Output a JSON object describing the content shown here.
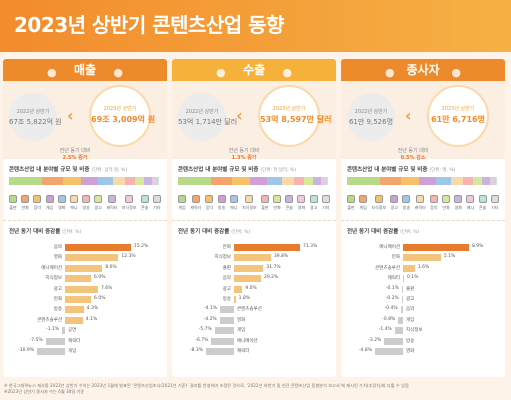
{
  "page": {
    "title": "2023년 상반기 콘텐츠산업 동향"
  },
  "colors": {
    "accent": "#f28b2c",
    "bar_max": "#e87c2e",
    "bar": "#f5c47c",
    "bar_neg": "#cccccc"
  },
  "panels": [
    {
      "title": "매출",
      "prev_label": "2022년 상반기",
      "prev_value": "67조 5,822억 원",
      "cur_label": "2023년 상반기",
      "cur_value": "69조 3,009억 원",
      "change_label": "전년 동기 대비",
      "change_value": "2.5% 증가",
      "share_title": "콘텐츠산업 내 분야별 규모 및 비중",
      "share_unit": "(단위: 십억 원, %)",
      "legend": [
        "출판",
        "만화",
        "음악",
        "게임",
        "영화",
        "애니",
        "방송",
        "광고",
        "캐릭터",
        "지식정보",
        "콘솔",
        "기타"
      ],
      "growth_title": "전년 동기 대비 증감률",
      "growth_unit": "(단위: %)",
      "growth": [
        {
          "label": "음악",
          "value": 15.2,
          "text": "15.2%"
        },
        {
          "label": "영화",
          "value": 12.3,
          "text": "12.3%"
        },
        {
          "label": "애니메이션",
          "value": 8.6,
          "text": "8.6%"
        },
        {
          "label": "지식정보",
          "value": 6.0,
          "text": "6.0%"
        },
        {
          "label": "광고",
          "value": 7.6,
          "text": "7.6%"
        },
        {
          "label": "만화",
          "value": 6.0,
          "text": "6.0%"
        },
        {
          "label": "방송",
          "value": 4.3,
          "text": "4.3%"
        },
        {
          "label": "콘텐츠솔루션",
          "value": 4.1,
          "text": "4.1%"
        },
        {
          "label": "공연",
          "value": -1.1,
          "text": "-1.1%"
        },
        {
          "label": "캐릭터",
          "value": -7.5,
          "text": "-7.5%"
        },
        {
          "label": "게임",
          "value": -10.9,
          "text": "-10.9%"
        }
      ]
    },
    {
      "title": "수출",
      "prev_label": "2022년 상반기",
      "prev_value": "53억 1,714만 달러",
      "cur_label": "2023년 상반기",
      "cur_value": "53억 8,597만 달러",
      "change_label": "전년 동기 대비",
      "change_value": "1.3% 증가",
      "share_title": "콘텐츠산업 내 분야별 규모 및 비중",
      "share_unit": "(단위: 천 달러, %)",
      "legend": [
        "게임",
        "캐릭터",
        "음악",
        "방송",
        "애니",
        "지식정보",
        "출판",
        "만화",
        "콘솔",
        "영화",
        "광고",
        "기타"
      ],
      "growth_title": "전년 동기 대비 증감률",
      "growth_unit": "(단위: %)",
      "growth": [
        {
          "label": "만화",
          "value": 71.3,
          "text": "71.3%"
        },
        {
          "label": "지식정보",
          "value": 39.8,
          "text": "39.8%"
        },
        {
          "label": "출판",
          "value": 31.7,
          "text": "31.7%"
        },
        {
          "label": "음악",
          "value": 29.2,
          "text": "29.2%"
        },
        {
          "label": "광고",
          "value": 9.0,
          "text": "9.0%"
        },
        {
          "label": "방송",
          "value": 1.8,
          "text": "1.8%"
        },
        {
          "label": "콘텐츠솔루션",
          "value": -4.1,
          "text": "-4.1%"
        },
        {
          "label": "영화",
          "value": -4.2,
          "text": "-4.2%"
        },
        {
          "label": "게임",
          "value": -5.7,
          "text": "-5.7%"
        },
        {
          "label": "애니메이션",
          "value": -6.7,
          "text": "-6.7%"
        },
        {
          "label": "캐릭터",
          "value": -8.3,
          "text": "-8.3%"
        }
      ]
    },
    {
      "title": "종사자",
      "prev_label": "2022년 상반기",
      "prev_value": "61만 9,526명",
      "cur_label": "2023년 상반기",
      "cur_value": "61만 6,716명",
      "change_label": "전년 동기 대비",
      "change_value": "0.5% 감소",
      "share_title": "콘텐츠산업 내 분야별 규모 및 비중",
      "share_unit": "(단위: 명, %)",
      "legend": [
        "출판",
        "게임",
        "지식정보",
        "광고",
        "방송",
        "캐릭터",
        "음악",
        "만화",
        "영화",
        "애니",
        "콘솔",
        "기타"
      ],
      "growth_title": "전년 동기 대비 증감률",
      "growth_unit": "(단위: %)",
      "growth": [
        {
          "label": "애니메이션",
          "value": 8.9,
          "text": "8.9%"
        },
        {
          "label": "만화",
          "value": 5.1,
          "text": "5.1%"
        },
        {
          "label": "콘텐츠솔루션",
          "value": 1.6,
          "text": "1.6%"
        },
        {
          "label": "캐릭터",
          "value": 0.1,
          "text": "0.1%"
        },
        {
          "label": "출판",
          "value": -0.1,
          "text": "-0.1%"
        },
        {
          "label": "광고",
          "value": -0.2,
          "text": "-0.2%"
        },
        {
          "label": "음악",
          "value": -0.4,
          "text": "-0.4%"
        },
        {
          "label": "게임",
          "value": -0.8,
          "text": "-0.8%"
        },
        {
          "label": "지식정보",
          "value": -1.4,
          "text": "-1.4%"
        },
        {
          "label": "방송",
          "value": -3.2,
          "text": "-3.2%"
        },
        {
          "label": "영화",
          "value": -4.8,
          "text": "-4.8%"
        }
      ]
    }
  ],
  "footer": {
    "line1": "※ 한국그래픽뉴스 재사용 2023년 상반기 수치는 2023년 1월에 발표된 ‘콘텐츠산업조사(2021년 기준)’ 결과를 반영하여 조정된 것으로, ‘2022년 하반기 및 연간 콘텐츠산업 동향분석 보고서’에 제시된 수치(추정치)와 다를 수 있음",
    "line2": "※2023년 상반기 종사자 수는 6월 30일 기준"
  }
}
